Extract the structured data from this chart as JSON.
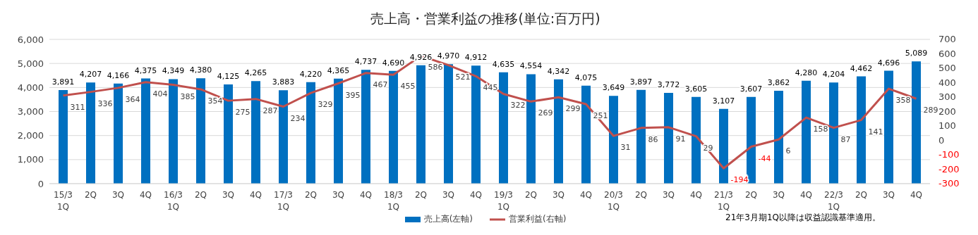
{
  "chart_data": {
    "type": "bar",
    "title": "売上高・営業利益の推移(単位:百万円)",
    "categories": [
      "15/3\n1Q",
      "2Q",
      "3Q",
      "4Q",
      "16/3\n1Q",
      "2Q",
      "3Q",
      "4Q",
      "17/3\n1Q",
      "2Q",
      "3Q",
      "4Q",
      "18/3\n1Q",
      "2Q",
      "3Q",
      "4Q",
      "19/3\n1Q",
      "2Q",
      "3Q",
      "4Q",
      "20/3\n1Q",
      "2Q",
      "3Q",
      "4Q",
      "21/3\n1Q",
      "2Q",
      "3Q",
      "4Q",
      "22/3\n1Q",
      "2Q",
      "3Q",
      "4Q"
    ],
    "series": [
      {
        "name": "売上高(左軸)",
        "color": "#0070c0",
        "values": [
          3891,
          4207,
          4166,
          4375,
          4349,
          4380,
          4125,
          4265,
          3883,
          4220,
          4365,
          4737,
          4690,
          4926,
          4970,
          4912,
          4635,
          4554,
          4342,
          4075,
          3649,
          3897,
          3772,
          3605,
          3107,
          3607,
          3862,
          4280,
          4204,
          4462,
          4696,
          5089
        ],
        "value_labels": [
          "3,891",
          "4,207",
          "4,166",
          "4,375",
          "4,349",
          "4,380",
          "4,125",
          "4,265",
          "3,883",
          "4,220",
          "4,365",
          "4,737",
          "4,690",
          "4,926",
          "4,970",
          "4,912",
          "4,635",
          "4,554",
          "4,342",
          "4,075",
          "3,649",
          "3,897",
          "3,772",
          "3,605",
          "3,107",
          "3,607",
          "3,862",
          "4,280",
          "4,204",
          "4,462",
          "4,696",
          "5,089"
        ]
      },
      {
        "name": "営業利益(右軸)",
        "type": "line",
        "axis": "y2",
        "color": "#c0504d",
        "values": [
          311,
          336,
          364,
          404,
          385,
          354,
          275,
          287,
          234,
          329,
          395,
          467,
          455,
          586,
          521,
          445,
          322,
          269,
          299,
          251,
          31,
          86,
          91,
          29,
          -194,
          -44,
          6,
          158,
          87,
          141,
          358,
          289
        ],
        "value_labels": [
          "311",
          "336",
          "364",
          "404",
          "385",
          "354",
          "275",
          "287",
          "234",
          "329",
          "395",
          "467",
          "455",
          "586",
          "521",
          "445",
          "322",
          "269",
          "299",
          "251",
          "31",
          "86",
          "91",
          "29",
          "-194",
          "-44",
          "6",
          "158",
          "87",
          "141",
          "358",
          "289"
        ]
      }
    ],
    "ylim": [
      0,
      6000
    ],
    "yticks": [
      0,
      {
        "value": 1000,
        "label": "1,000"
      },
      {
        "value": 2000,
        "label": "2,000"
      },
      {
        "value": 3000,
        "label": "3,000"
      },
      {
        "value": 4000,
        "label": "4,000"
      },
      {
        "value": 5000,
        "label": "5,000"
      },
      {
        "value": 6000,
        "label": "6,000"
      }
    ],
    "y2lim": [
      -300,
      700
    ],
    "y2ticks": [
      -300,
      -200,
      -100,
      0,
      100,
      200,
      300,
      400,
      500,
      600,
      700
    ],
    "grid": "y",
    "legend": "bottom",
    "marker": "none",
    "annotations": [
      "21年3月期1Q以降は収益認識基準適用。"
    ]
  }
}
